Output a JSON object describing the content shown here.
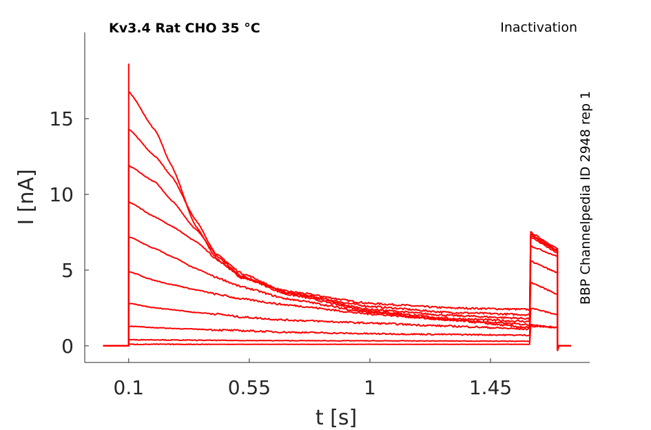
{
  "chart_data": {
    "type": "line",
    "title": "Kv3.4  Rat  CHO  35 °C",
    "protocol_label": "Inactivation",
    "side_label": "BBP Channelpedia ID 2948 rep 1",
    "xlabel": "t [s]",
    "ylabel": "I [nA]",
    "xlim": [
      -0.064,
      1.82
    ],
    "ylim": [
      -1.1,
      20.7
    ],
    "xticks": [
      0.1,
      0.55,
      1,
      1.45
    ],
    "xtick_labels": [
      "0.1",
      "0.55",
      "1",
      "1.45"
    ],
    "yticks": [
      0,
      5,
      10,
      15
    ],
    "ytick_labels": [
      "0",
      "5",
      "10",
      "15"
    ],
    "grid": false,
    "color": "#ff0000",
    "baseline_start": 0.005,
    "pulse1": [
      0.1,
      1.6
    ],
    "pulse2": [
      1.6,
      1.7
    ],
    "trace_end": 1.75,
    "peak_spike": 18.6,
    "t": [
      0.1,
      0.2,
      0.26,
      0.35,
      0.43,
      0.52,
      0.69,
      1.0,
      1.3,
      1.6
    ],
    "series": [
      {
        "values": [
          16.8,
          14.2,
          11.9,
          7.9,
          5.7,
          4.5,
          3.6,
          2.8,
          2.5,
          2.4
        ],
        "pulse2": [
          7.5,
          6.4
        ]
      },
      {
        "values": [
          14.3,
          12.5,
          11.2,
          8.3,
          5.9,
          4.6,
          3.5,
          2.6,
          2.2,
          2.05
        ],
        "pulse2": [
          7.4,
          6.3
        ]
      },
      {
        "values": [
          11.9,
          10.8,
          9.6,
          7.7,
          6.0,
          4.8,
          3.5,
          2.4,
          2.0,
          1.8
        ],
        "pulse2": [
          7.3,
          6.2
        ]
      },
      {
        "values": [
          9.5,
          8.5,
          7.9,
          6.9,
          5.7,
          4.6,
          3.4,
          2.3,
          1.8,
          1.6
        ],
        "pulse2": [
          7.2,
          6.1
        ]
      },
      {
        "values": [
          7.2,
          6.4,
          5.9,
          5.1,
          4.5,
          3.9,
          3.1,
          2.2,
          1.7,
          1.4
        ],
        "pulse2": [
          6.6,
          5.9
        ]
      },
      {
        "values": [
          4.9,
          4.3,
          4.05,
          3.7,
          3.4,
          3.1,
          2.7,
          2.1,
          1.7,
          1.2
        ],
        "pulse2": [
          5.6,
          4.8
        ]
      },
      {
        "values": [
          2.8,
          2.5,
          2.4,
          2.2,
          2.1,
          1.9,
          1.7,
          1.5,
          1.3,
          1.1
        ],
        "pulse2": [
          4.2,
          3.4
        ]
      },
      {
        "values": [
          1.3,
          1.2,
          1.15,
          1.1,
          1.05,
          1.0,
          0.9,
          0.8,
          0.75,
          0.7
        ],
        "pulse2": [
          2.5,
          2.05
        ]
      },
      {
        "values": [
          0.4,
          0.4,
          0.38,
          0.37,
          0.36,
          0.35,
          0.34,
          0.33,
          0.32,
          0.3
        ],
        "pulse2": [
          1.4,
          1.2
        ]
      },
      {
        "values": [
          0.1,
          0.1,
          0.1,
          0.1,
          0.1,
          0.1,
          0.1,
          0.1,
          0.1,
          0.1
        ],
        "pulse2": [
          1.3,
          1.2
        ]
      }
    ]
  }
}
